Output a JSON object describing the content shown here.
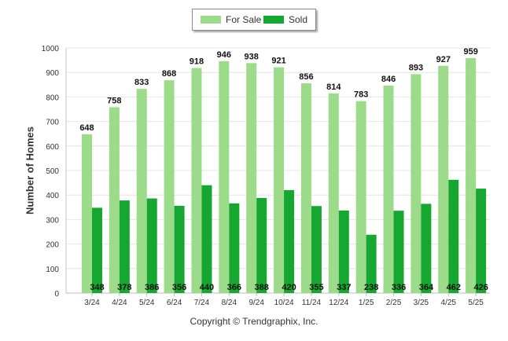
{
  "legend": {
    "items": [
      {
        "label": "For Sale",
        "color": "#9cdb8a"
      },
      {
        "label": "Sold",
        "color": "#16a730"
      }
    ],
    "placement": "top-center"
  },
  "footer": {
    "copyright": "Copyright © Trendgraphix, Inc."
  },
  "chart_data": {
    "type": "bar",
    "title": "",
    "xlabel": "",
    "ylabel": "Number of Homes",
    "ylim": [
      0,
      1000
    ],
    "yticks": [
      0,
      100,
      200,
      300,
      400,
      500,
      600,
      700,
      800,
      900,
      1000
    ],
    "grid": true,
    "categories": [
      "3/24",
      "4/24",
      "5/24",
      "6/24",
      "7/24",
      "8/24",
      "9/24",
      "10/24",
      "11/24",
      "12/24",
      "1/25",
      "2/25",
      "3/25",
      "4/25",
      "5/25"
    ],
    "series": [
      {
        "name": "For Sale",
        "color": "#9cdb8a",
        "label_position": "above",
        "values": [
          648,
          758,
          833,
          868,
          918,
          946,
          938,
          921,
          856,
          814,
          783,
          846,
          893,
          927,
          959
        ]
      },
      {
        "name": "Sold",
        "color": "#16a730",
        "label_position": "base",
        "values": [
          348,
          378,
          386,
          356,
          440,
          366,
          388,
          420,
          355,
          337,
          238,
          336,
          364,
          462,
          426
        ]
      }
    ]
  }
}
